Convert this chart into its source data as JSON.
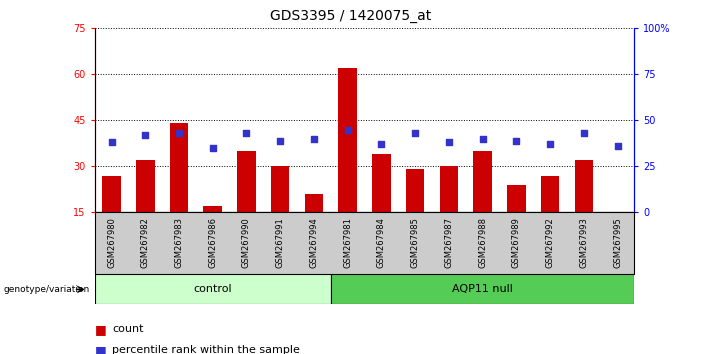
{
  "title": "GDS3395 / 1420075_at",
  "samples": [
    "GSM267980",
    "GSM267982",
    "GSM267983",
    "GSM267986",
    "GSM267990",
    "GSM267991",
    "GSM267994",
    "GSM267981",
    "GSM267984",
    "GSM267985",
    "GSM267987",
    "GSM267988",
    "GSM267989",
    "GSM267992",
    "GSM267993",
    "GSM267995"
  ],
  "bar_values": [
    27,
    32,
    44,
    17,
    35,
    30,
    21,
    62,
    34,
    29,
    30,
    35,
    24,
    27,
    32,
    15
  ],
  "dot_values_pct": [
    38,
    42,
    43,
    35,
    43,
    39,
    40,
    45,
    37,
    43,
    38,
    40,
    39,
    37,
    43,
    36
  ],
  "control_count": 7,
  "control_label": "control",
  "aqp_label": "AQP11 null",
  "ylim_left": [
    15,
    75
  ],
  "ylim_right": [
    0,
    100
  ],
  "yticks_left": [
    15,
    30,
    45,
    60,
    75
  ],
  "yticks_right": [
    0,
    25,
    50,
    75,
    100
  ],
  "bar_color": "#cc0000",
  "dot_color": "#3333cc",
  "control_bg": "#ccffcc",
  "aqp_bg": "#55cc55",
  "sample_bg": "#cccccc",
  "genotype_label": "genotype/variation",
  "legend_count": "count",
  "legend_percentile": "percentile rank within the sample",
  "background_color": "#ffffff",
  "title_fontsize": 10,
  "tick_fontsize": 7,
  "sample_fontsize": 6,
  "label_fontsize": 8,
  "legend_fontsize": 8
}
